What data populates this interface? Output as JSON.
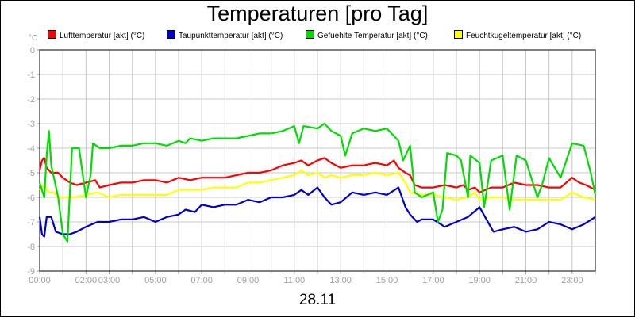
{
  "chart_data": {
    "type": "line",
    "title": "Temperaturen [pro Tag]",
    "xlabel": "28.11",
    "ylabel": "°C",
    "ylim": [
      -9,
      0
    ],
    "xlim": [
      0,
      24
    ],
    "grid": true,
    "legend_position": "top",
    "y_ticks": [
      "0",
      "-1",
      "-2",
      "-3",
      "-4",
      "-5",
      "-6",
      "-7",
      "-8",
      "-9"
    ],
    "x_ticks": [
      "00:00",
      "02:00",
      "03:00",
      "05:00",
      "07:00",
      "09:00",
      "11:00",
      "13:00",
      "15:00",
      "17:00",
      "19:00",
      "21:00",
      "23:00"
    ],
    "x_tick_hours": [
      0,
      2,
      3,
      5,
      7,
      9,
      11,
      13,
      15,
      17,
      19,
      21,
      23
    ],
    "series": [
      {
        "name": "Lufttemperatur [akt] (°C)",
        "color": "#ff0000",
        "points": [
          [
            0,
            -4.9
          ],
          [
            0.1,
            -4.5
          ],
          [
            0.2,
            -4.4
          ],
          [
            0.3,
            -4.8
          ],
          [
            0.5,
            -5.0
          ],
          [
            0.8,
            -5.0
          ],
          [
            1.0,
            -5.2
          ],
          [
            1.3,
            -5.4
          ],
          [
            1.6,
            -5.5
          ],
          [
            2.0,
            -5.4
          ],
          [
            2.4,
            -5.3
          ],
          [
            2.6,
            -5.6
          ],
          [
            3.0,
            -5.5
          ],
          [
            3.5,
            -5.4
          ],
          [
            4.0,
            -5.4
          ],
          [
            4.5,
            -5.3
          ],
          [
            5.0,
            -5.3
          ],
          [
            5.5,
            -5.4
          ],
          [
            6.0,
            -5.2
          ],
          [
            6.5,
            -5.3
          ],
          [
            7.0,
            -5.2
          ],
          [
            7.5,
            -5.2
          ],
          [
            8.0,
            -5.2
          ],
          [
            8.5,
            -5.1
          ],
          [
            9.0,
            -5.0
          ],
          [
            9.5,
            -5.0
          ],
          [
            10.0,
            -4.9
          ],
          [
            10.5,
            -4.7
          ],
          [
            11.0,
            -4.6
          ],
          [
            11.3,
            -4.5
          ],
          [
            11.6,
            -4.7
          ],
          [
            12.0,
            -4.5
          ],
          [
            12.3,
            -4.4
          ],
          [
            12.6,
            -4.6
          ],
          [
            13.0,
            -4.8
          ],
          [
            13.5,
            -4.7
          ],
          [
            14.0,
            -4.7
          ],
          [
            14.5,
            -4.6
          ],
          [
            15.0,
            -4.7
          ],
          [
            15.3,
            -4.5
          ],
          [
            15.5,
            -4.8
          ],
          [
            15.8,
            -5.0
          ],
          [
            16.0,
            -5.1
          ],
          [
            16.2,
            -5.5
          ],
          [
            16.5,
            -5.6
          ],
          [
            17.0,
            -5.6
          ],
          [
            17.5,
            -5.5
          ],
          [
            18.0,
            -5.6
          ],
          [
            18.3,
            -5.5
          ],
          [
            18.5,
            -5.7
          ],
          [
            18.8,
            -5.6
          ],
          [
            19.0,
            -5.8
          ],
          [
            19.5,
            -5.6
          ],
          [
            20.0,
            -5.6
          ],
          [
            20.5,
            -5.4
          ],
          [
            21.0,
            -5.5
          ],
          [
            21.5,
            -5.5
          ],
          [
            22.0,
            -5.6
          ],
          [
            22.5,
            -5.6
          ],
          [
            23.0,
            -5.2
          ],
          [
            23.3,
            -5.4
          ],
          [
            23.6,
            -5.5
          ],
          [
            24.0,
            -5.7
          ]
        ]
      },
      {
        "name": "Taupunkttemperatur [akt] (°C)",
        "color": "#0000cc",
        "points": [
          [
            0,
            -6.8
          ],
          [
            0.1,
            -7.5
          ],
          [
            0.2,
            -7.6
          ],
          [
            0.3,
            -6.8
          ],
          [
            0.5,
            -6.8
          ],
          [
            0.7,
            -7.4
          ],
          [
            1.0,
            -7.5
          ],
          [
            1.3,
            -7.5
          ],
          [
            1.6,
            -7.4
          ],
          [
            2.0,
            -7.2
          ],
          [
            2.5,
            -7.0
          ],
          [
            3.0,
            -7.0
          ],
          [
            3.5,
            -6.9
          ],
          [
            4.0,
            -6.9
          ],
          [
            4.5,
            -6.8
          ],
          [
            5.0,
            -7.0
          ],
          [
            5.5,
            -6.8
          ],
          [
            6.0,
            -6.7
          ],
          [
            6.3,
            -6.5
          ],
          [
            6.7,
            -6.6
          ],
          [
            7.0,
            -6.3
          ],
          [
            7.5,
            -6.4
          ],
          [
            8.0,
            -6.3
          ],
          [
            8.5,
            -6.3
          ],
          [
            9.0,
            -6.1
          ],
          [
            9.5,
            -6.2
          ],
          [
            10.0,
            -6.0
          ],
          [
            10.5,
            -6.0
          ],
          [
            11.0,
            -5.9
          ],
          [
            11.3,
            -5.7
          ],
          [
            11.6,
            -5.9
          ],
          [
            12.0,
            -5.6
          ],
          [
            12.3,
            -6.0
          ],
          [
            12.6,
            -6.3
          ],
          [
            13.0,
            -6.2
          ],
          [
            13.5,
            -5.8
          ],
          [
            14.0,
            -5.9
          ],
          [
            14.5,
            -5.8
          ],
          [
            15.0,
            -5.9
          ],
          [
            15.5,
            -5.6
          ],
          [
            15.8,
            -6.4
          ],
          [
            16.0,
            -6.7
          ],
          [
            16.3,
            -7.0
          ],
          [
            16.5,
            -6.9
          ],
          [
            17.0,
            -6.9
          ],
          [
            17.5,
            -7.2
          ],
          [
            18.0,
            -7.0
          ],
          [
            18.5,
            -6.8
          ],
          [
            19.0,
            -6.4
          ],
          [
            19.3,
            -6.9
          ],
          [
            19.6,
            -7.4
          ],
          [
            20.0,
            -7.3
          ],
          [
            20.5,
            -7.2
          ],
          [
            21.0,
            -7.4
          ],
          [
            21.5,
            -7.3
          ],
          [
            22.0,
            -7.0
          ],
          [
            22.5,
            -7.1
          ],
          [
            23.0,
            -7.3
          ],
          [
            23.5,
            -7.1
          ],
          [
            24.0,
            -6.8
          ]
        ]
      },
      {
        "name": "Gefuehlte Temperatur [akt] (°C)",
        "color": "#00dd00",
        "points": [
          [
            0,
            -5.4
          ],
          [
            0.2,
            -6.0
          ],
          [
            0.3,
            -4.3
          ],
          [
            0.4,
            -3.3
          ],
          [
            0.5,
            -4.7
          ],
          [
            0.8,
            -6.0
          ],
          [
            1.0,
            -7.5
          ],
          [
            1.2,
            -7.8
          ],
          [
            1.4,
            -4.0
          ],
          [
            1.7,
            -4.0
          ],
          [
            2.0,
            -6.0
          ],
          [
            2.2,
            -5.1
          ],
          [
            2.3,
            -3.8
          ],
          [
            2.6,
            -4.0
          ],
          [
            3.0,
            -4.0
          ],
          [
            3.5,
            -3.9
          ],
          [
            4.0,
            -3.9
          ],
          [
            4.5,
            -3.8
          ],
          [
            5.0,
            -3.8
          ],
          [
            5.5,
            -3.9
          ],
          [
            6.0,
            -3.7
          ],
          [
            6.3,
            -3.8
          ],
          [
            6.5,
            -3.6
          ],
          [
            7.0,
            -3.7
          ],
          [
            7.5,
            -3.6
          ],
          [
            8.0,
            -3.6
          ],
          [
            8.5,
            -3.6
          ],
          [
            9.0,
            -3.5
          ],
          [
            9.5,
            -3.4
          ],
          [
            10.0,
            -3.4
          ],
          [
            10.5,
            -3.3
          ],
          [
            11.0,
            -3.1
          ],
          [
            11.2,
            -3.8
          ],
          [
            11.4,
            -3.1
          ],
          [
            12.0,
            -3.2
          ],
          [
            12.3,
            -3.0
          ],
          [
            12.6,
            -3.3
          ],
          [
            13.0,
            -3.5
          ],
          [
            13.2,
            -4.3
          ],
          [
            13.5,
            -3.4
          ],
          [
            14.0,
            -3.2
          ],
          [
            14.5,
            -3.3
          ],
          [
            15.0,
            -3.2
          ],
          [
            15.5,
            -3.7
          ],
          [
            15.7,
            -4.5
          ],
          [
            16.0,
            -3.9
          ],
          [
            16.2,
            -5.8
          ],
          [
            16.5,
            -6.0
          ],
          [
            17.0,
            -5.8
          ],
          [
            17.2,
            -7.0
          ],
          [
            17.4,
            -6.5
          ],
          [
            17.6,
            -4.2
          ],
          [
            18.0,
            -4.3
          ],
          [
            18.2,
            -4.5
          ],
          [
            18.5,
            -6.0
          ],
          [
            18.6,
            -4.3
          ],
          [
            19.0,
            -4.6
          ],
          [
            19.2,
            -6.4
          ],
          [
            19.5,
            -4.5
          ],
          [
            20.0,
            -4.3
          ],
          [
            20.3,
            -6.5
          ],
          [
            20.6,
            -4.3
          ],
          [
            21.0,
            -4.5
          ],
          [
            21.5,
            -6.0
          ],
          [
            21.7,
            -5.5
          ],
          [
            22.0,
            -4.4
          ],
          [
            22.5,
            -5.2
          ],
          [
            23.0,
            -3.8
          ],
          [
            23.5,
            -3.9
          ],
          [
            23.8,
            -5.0
          ],
          [
            24.0,
            -5.9
          ]
        ]
      },
      {
        "name": "Feuchtkugeltemperatur [akt] (°C)",
        "color": "#ffff00",
        "points": [
          [
            0,
            -5.7
          ],
          [
            0.2,
            -5.5
          ],
          [
            0.4,
            -5.8
          ],
          [
            0.6,
            -5.8
          ],
          [
            0.8,
            -6.0
          ],
          [
            1.0,
            -6.0
          ],
          [
            1.5,
            -6.0
          ],
          [
            2.0,
            -5.9
          ],
          [
            2.5,
            -5.8
          ],
          [
            3.0,
            -6.0
          ],
          [
            3.5,
            -5.9
          ],
          [
            4.0,
            -5.9
          ],
          [
            4.5,
            -5.9
          ],
          [
            5.0,
            -5.9
          ],
          [
            5.5,
            -5.9
          ],
          [
            6.0,
            -5.7
          ],
          [
            6.5,
            -5.7
          ],
          [
            7.0,
            -5.7
          ],
          [
            7.5,
            -5.6
          ],
          [
            8.0,
            -5.6
          ],
          [
            8.5,
            -5.6
          ],
          [
            9.0,
            -5.4
          ],
          [
            9.5,
            -5.4
          ],
          [
            10.0,
            -5.3
          ],
          [
            10.5,
            -5.2
          ],
          [
            11.0,
            -5.1
          ],
          [
            11.3,
            -4.9
          ],
          [
            11.6,
            -5.1
          ],
          [
            12.0,
            -5.0
          ],
          [
            12.3,
            -5.2
          ],
          [
            12.6,
            -5.1
          ],
          [
            13.0,
            -5.2
          ],
          [
            13.5,
            -5.1
          ],
          [
            14.0,
            -5.1
          ],
          [
            14.5,
            -5.0
          ],
          [
            15.0,
            -5.1
          ],
          [
            15.5,
            -5.0
          ],
          [
            15.8,
            -5.4
          ],
          [
            16.0,
            -5.8
          ],
          [
            16.5,
            -5.9
          ],
          [
            17.0,
            -5.9
          ],
          [
            17.5,
            -6.0
          ],
          [
            18.0,
            -6.1
          ],
          [
            18.5,
            -6.0
          ],
          [
            18.8,
            -5.8
          ],
          [
            19.0,
            -6.1
          ],
          [
            19.5,
            -6.0
          ],
          [
            20.0,
            -6.0
          ],
          [
            20.5,
            -6.1
          ],
          [
            21.0,
            -6.1
          ],
          [
            21.5,
            -6.1
          ],
          [
            22.0,
            -6.1
          ],
          [
            22.5,
            -6.1
          ],
          [
            23.0,
            -5.8
          ],
          [
            23.5,
            -6.0
          ],
          [
            24.0,
            -6.1
          ]
        ]
      }
    ]
  }
}
